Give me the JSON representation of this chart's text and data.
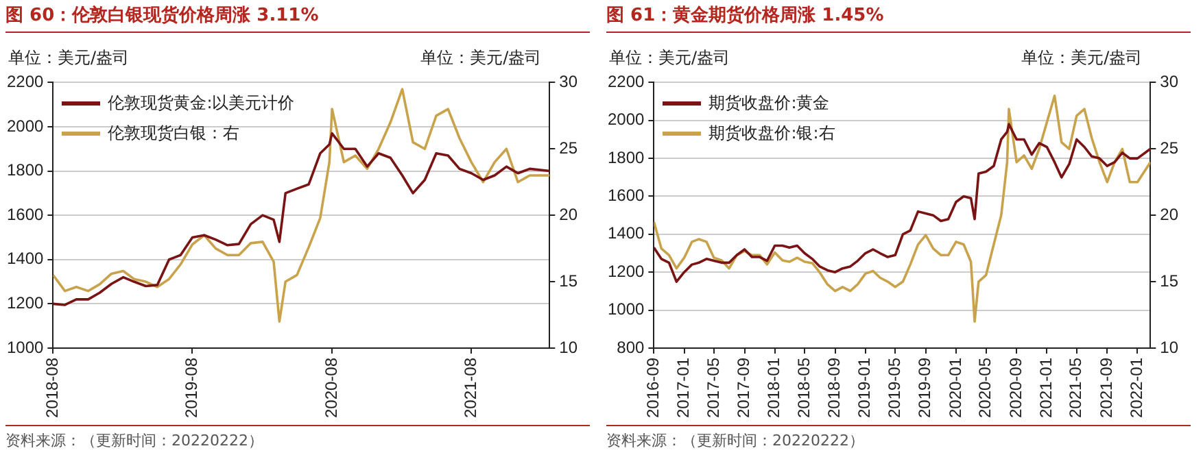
{
  "chart_data": [
    {
      "type": "line",
      "title": "图 60：伦敦白银现货价格周涨 3.11%",
      "ylabel": "单位：美元/盎司",
      "y2label": "单位：美元/盎司",
      "annotations": [
        "资料来源：（更新时间：20220222）"
      ],
      "x": [
        "2018-08",
        "2018-09",
        "2018-10",
        "2018-11",
        "2018-12",
        "2019-01",
        "2019-02",
        "2019-03",
        "2019-04",
        "2019-05",
        "2019-06",
        "2019-07",
        "2019-08",
        "2019-09",
        "2019-10",
        "2019-11",
        "2019-12",
        "2020-01",
        "2020-02",
        "2020-03",
        "2020-03-16",
        "2020-04",
        "2020-05",
        "2020-06",
        "2020-07",
        "2020-07-25",
        "2020-08",
        "2020-09",
        "2020-10",
        "2020-11",
        "2020-12",
        "2021-01",
        "2021-02",
        "2021-03",
        "2021-04",
        "2021-05",
        "2021-06",
        "2021-07",
        "2021-08",
        "2021-09",
        "2021-10",
        "2021-11",
        "2021-12",
        "2022-01",
        "2022-02-22"
      ],
      "series": [
        {
          "name": "伦敦现货黄金:以美元计价",
          "color": "#7a1414",
          "values": [
            1200,
            1195,
            1220,
            1220,
            1250,
            1290,
            1320,
            1300,
            1280,
            1285,
            1400,
            1420,
            1500,
            1510,
            1490,
            1465,
            1470,
            1560,
            1600,
            1580,
            1480,
            1700,
            1720,
            1740,
            1880,
            1920,
            1970,
            1900,
            1900,
            1820,
            1880,
            1860,
            1780,
            1700,
            1760,
            1880,
            1870,
            1810,
            1790,
            1760,
            1780,
            1820,
            1790,
            1810,
            1800
          ]
        },
        {
          "name": "伦敦现货白银：右",
          "color": "#c9a34c",
          "axis": "y2",
          "values": [
            15.5,
            14.3,
            14.6,
            14.3,
            14.8,
            15.6,
            15.8,
            15.2,
            15.0,
            14.6,
            15.2,
            16.3,
            17.8,
            18.5,
            17.5,
            17.0,
            17.0,
            17.9,
            18.0,
            16.5,
            12.0,
            15.0,
            15.5,
            17.6,
            19.8,
            24.0,
            28.0,
            24.0,
            24.5,
            23.5,
            25.0,
            27.0,
            29.5,
            25.5,
            25.0,
            27.5,
            28.0,
            25.8,
            24.0,
            22.5,
            24.0,
            25.0,
            22.5,
            23.0,
            23.0
          ]
        }
      ],
      "xlim": [
        "2018-08",
        "2022-02-22"
      ],
      "xticks": [
        "2018-08",
        "2019-08",
        "2020-08",
        "2021-08"
      ],
      "ylim": [
        1000,
        2200
      ],
      "yticks": [
        1000,
        1200,
        1400,
        1600,
        1800,
        2000,
        2200
      ],
      "y2lim": [
        10,
        30
      ],
      "y2ticks": [
        10,
        15,
        20,
        25,
        30
      ],
      "grid": "y",
      "legend": "top left",
      "marker": "none",
      "line_style": "solid"
    },
    {
      "type": "line",
      "title": "图 61：黄金期货价格周涨 1.45%",
      "ylabel": "单位：美元/盎司",
      "y2label": "单位：美元/盎司",
      "annotations": [
        "资料来源：（更新时间：20220222）"
      ],
      "x": [
        "2016-09",
        "2016-10",
        "2016-11",
        "2016-12",
        "2017-01",
        "2017-02",
        "2017-03",
        "2017-04",
        "2017-05",
        "2017-06",
        "2017-07",
        "2017-08",
        "2017-09",
        "2017-10",
        "2017-11",
        "2017-12",
        "2018-01",
        "2018-02",
        "2018-03",
        "2018-04",
        "2018-05",
        "2018-06",
        "2018-07",
        "2018-08",
        "2018-09",
        "2018-10",
        "2018-11",
        "2018-12",
        "2019-01",
        "2019-02",
        "2019-03",
        "2019-04",
        "2019-05",
        "2019-06",
        "2019-07",
        "2019-08",
        "2019-09",
        "2019-10",
        "2019-11",
        "2019-12",
        "2020-01",
        "2020-02",
        "2020-03",
        "2020-03-16",
        "2020-04",
        "2020-05",
        "2020-06",
        "2020-07",
        "2020-07-25",
        "2020-08",
        "2020-09",
        "2020-10",
        "2020-11",
        "2020-12",
        "2021-01",
        "2021-02",
        "2021-03",
        "2021-04",
        "2021-05",
        "2021-06",
        "2021-07",
        "2021-08",
        "2021-09",
        "2021-10",
        "2021-11",
        "2021-12",
        "2022-01",
        "2022-02-22"
      ],
      "series": [
        {
          "name": "期货收盘价:黄金",
          "color": "#7a1414",
          "values": [
            1330,
            1270,
            1250,
            1150,
            1200,
            1240,
            1250,
            1270,
            1260,
            1250,
            1250,
            1290,
            1320,
            1280,
            1280,
            1260,
            1340,
            1340,
            1330,
            1340,
            1300,
            1270,
            1230,
            1210,
            1200,
            1220,
            1230,
            1260,
            1300,
            1320,
            1300,
            1280,
            1290,
            1400,
            1420,
            1520,
            1510,
            1500,
            1470,
            1480,
            1570,
            1600,
            1590,
            1480,
            1720,
            1730,
            1760,
            1900,
            1940,
            1980,
            1900,
            1900,
            1820,
            1880,
            1860,
            1780,
            1700,
            1770,
            1900,
            1860,
            1810,
            1800,
            1760,
            1780,
            1830,
            1800,
            1800,
            1850
          ]
        },
        {
          "name": "期货收盘价:银:右",
          "color": "#c9a34c",
          "axis": "y2",
          "values": [
            19.5,
            17.5,
            17.0,
            16.0,
            16.8,
            18.0,
            18.2,
            18.0,
            16.8,
            16.6,
            16.0,
            17.0,
            17.3,
            17.0,
            17.0,
            16.3,
            17.2,
            16.6,
            16.5,
            16.8,
            16.5,
            16.4,
            15.7,
            14.8,
            14.3,
            14.6,
            14.3,
            14.8,
            15.6,
            15.8,
            15.3,
            15.0,
            14.6,
            15.0,
            16.3,
            17.8,
            18.5,
            17.5,
            17.0,
            17.0,
            18.0,
            17.8,
            16.5,
            12.0,
            15.0,
            15.5,
            17.8,
            20.0,
            24.0,
            28.0,
            24.0,
            24.5,
            23.5,
            25.0,
            27.0,
            29.0,
            25.5,
            25.0,
            27.5,
            28.0,
            25.8,
            24.0,
            22.5,
            24.0,
            25.0,
            22.5,
            22.5,
            24.0
          ]
        }
      ],
      "xlim": [
        "2016-09",
        "2022-02-22"
      ],
      "xticks": [
        "2016-09",
        "2017-01",
        "2017-05",
        "2017-09",
        "2018-01",
        "2018-05",
        "2018-09",
        "2019-01",
        "2019-05",
        "2019-09",
        "2020-01",
        "2020-05",
        "2020-09",
        "2021-01",
        "2021-05",
        "2021-09",
        "2022-01"
      ],
      "ylim": [
        800,
        2200
      ],
      "yticks": [
        800,
        1000,
        1200,
        1400,
        1600,
        1800,
        2000,
        2200
      ],
      "y2lim": [
        10,
        30
      ],
      "y2ticks": [
        10,
        15,
        20,
        25,
        30
      ],
      "grid": "y",
      "legend": "top left",
      "marker": "none",
      "line_style": "solid"
    }
  ]
}
